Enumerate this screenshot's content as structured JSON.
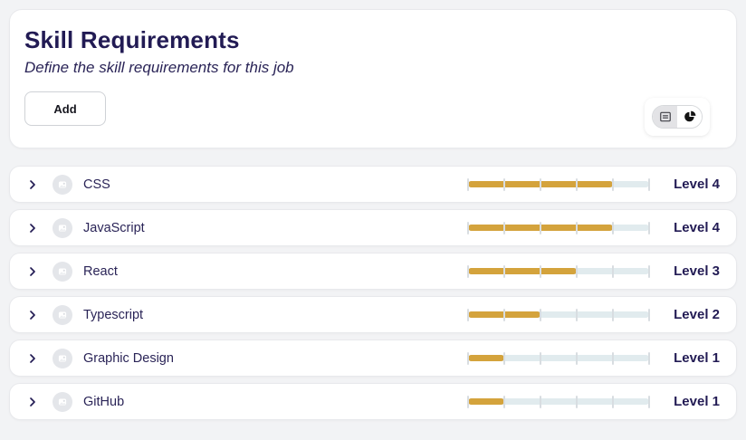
{
  "header": {
    "title": "Skill Requirements",
    "subtitle": "Define the skill requirements for this job",
    "add_label": "Add",
    "view_toggle": {
      "selected": "list",
      "options": [
        "list",
        "pie-chart"
      ]
    }
  },
  "slider": {
    "max_level": 5
  },
  "colors": {
    "accent_fill": "#d4a33c",
    "track": "#e1ebee",
    "navy_text": "#221b54",
    "page_background": "#f2f3f5"
  },
  "skills": [
    {
      "name": "CSS",
      "level": 4,
      "level_label": "Level 4"
    },
    {
      "name": "JavaScript",
      "level": 4,
      "level_label": "Level 4"
    },
    {
      "name": "React",
      "level": 3,
      "level_label": "Level 3"
    },
    {
      "name": "Typescript",
      "level": 2,
      "level_label": "Level 2"
    },
    {
      "name": "Graphic Design",
      "level": 1,
      "level_label": "Level 1"
    },
    {
      "name": "GitHub",
      "level": 1,
      "level_label": "Level 1"
    }
  ]
}
